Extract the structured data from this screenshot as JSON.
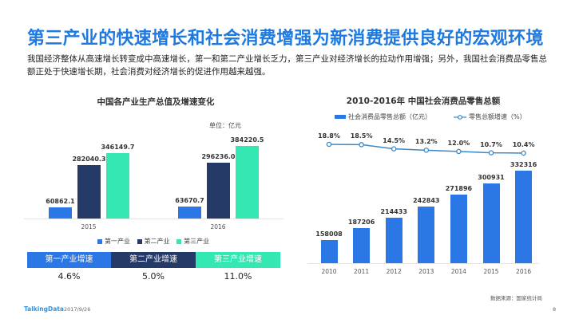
{
  "title": "第三产业的快速增长和社会消费增强为新消费提供良好的宏观环境",
  "intro": "我国经济整体从高速增长转变成中高速增长，第一和第二产业增长乏力，第三产业对经济增长的拉动作用增强；另外，我国社会消费品零售总额正处于快速增长期，社会消费对经济增长的促进作用越来越强。",
  "colors": {
    "primary": "#2b77e5",
    "secondary": "#253a66",
    "tertiary": "#34e8b4",
    "title": "#1f7ae0"
  },
  "chart_data": [
    {
      "type": "bar",
      "title": "中国各产业生产总值及增速变化",
      "unit": "单位：亿元",
      "categories": [
        "2015",
        "2016"
      ],
      "series": [
        {
          "name": "第一产业",
          "values": [
            60862.1,
            63670.7
          ]
        },
        {
          "name": "第二产业",
          "values": [
            282040.3,
            296236.0
          ]
        },
        {
          "name": "第三产业",
          "values": [
            346149.7,
            384220.5
          ]
        }
      ],
      "value_labels": [
        [
          "60862.1",
          "282040.3",
          "346149.7"
        ],
        [
          "63670.7",
          "296236.0",
          "384220.5"
        ]
      ],
      "legend": "bottom",
      "grid": false,
      "ylim": [
        0,
        420000
      ]
    },
    {
      "type": "bar+line",
      "title": "2010-2016年 中国社会消费品零售总额",
      "categories": [
        "2010",
        "2011",
        "2012",
        "2013",
        "2014",
        "2015",
        "2016"
      ],
      "series": [
        {
          "name": "社会消费品零售总额（亿元）",
          "type": "bar",
          "values": [
            158008,
            187206,
            214433,
            242843,
            271896,
            300931,
            332316
          ]
        },
        {
          "name": "零售总额增速（%）",
          "type": "line",
          "values": [
            18.8,
            18.5,
            14.5,
            13.2,
            12.0,
            10.7,
            10.4
          ]
        }
      ],
      "rate_labels": [
        "18.8%",
        "18.5%",
        "14.5%",
        "13.2%",
        "12.0%",
        "10.7%",
        "10.4%"
      ],
      "legend": "top",
      "grid": false,
      "ylim": [
        100000,
        350000
      ]
    }
  ],
  "growth_table": {
    "headers": [
      "第一产业增速",
      "第二产业增速",
      "第三产业增速"
    ],
    "values": [
      "4.6%",
      "5.0%",
      "11.0%"
    ]
  },
  "footer": {
    "source": "数据来源：国家统计局",
    "brand": "TalkingData",
    "date": "2017/9/26",
    "page": "8"
  }
}
